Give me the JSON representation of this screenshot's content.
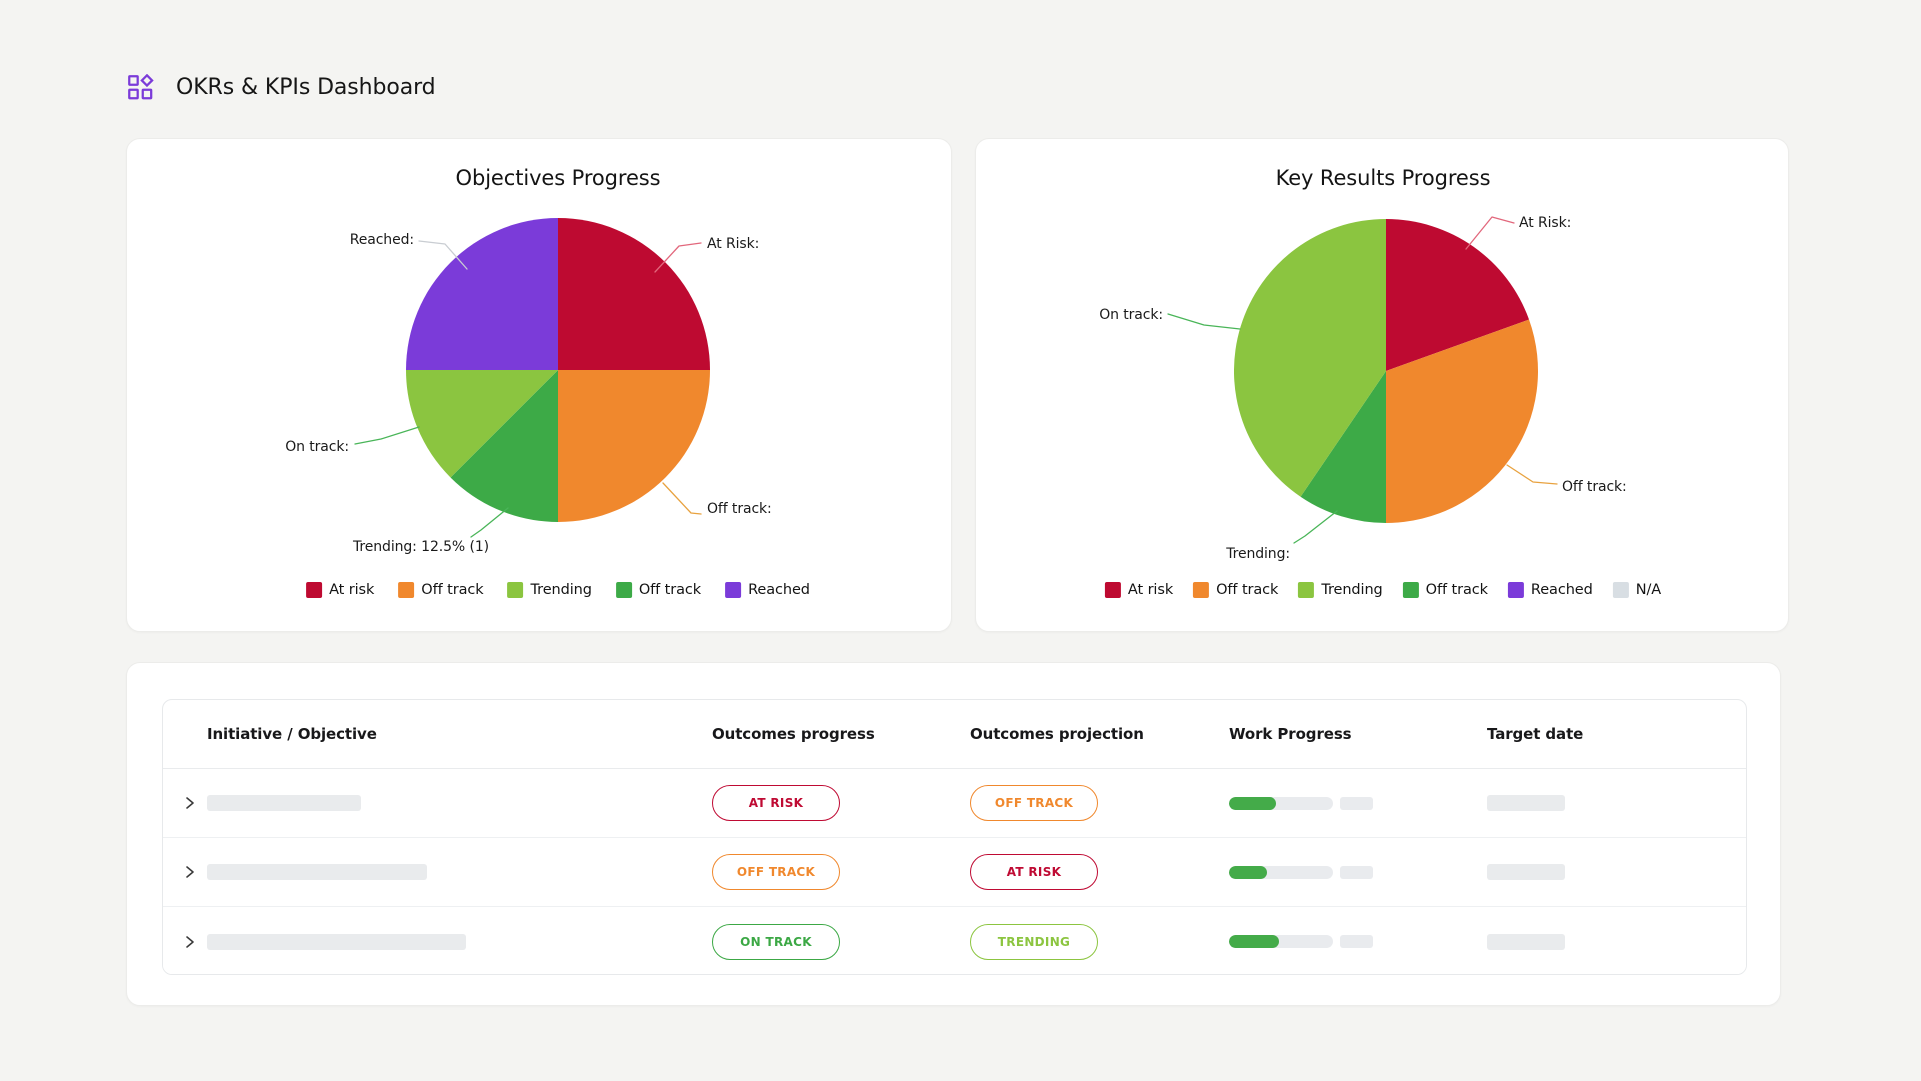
{
  "page": {
    "title": "OKRs & KPIs Dashboard"
  },
  "chart_data": [
    {
      "type": "pie",
      "title": "Objectives Progress",
      "slices": [
        {
          "label": "At risk",
          "percent": 25,
          "color": "#BE0A31"
        },
        {
          "label": "Off track",
          "percent": 25,
          "color": "#F0882D"
        },
        {
          "label": "Off track",
          "percent": 12.5,
          "color": "#3DAA47"
        },
        {
          "label": "Trending",
          "percent": 12.5,
          "color": "#8BC540"
        },
        {
          "label": "Reached",
          "percent": 25,
          "color": "#7B3BD9"
        }
      ],
      "callouts": {
        "reached": "Reached:",
        "at_risk": "At Risk:",
        "off_track": "Off track:",
        "trending": "Trending:  12.5% (1)",
        "on_track": "On track:"
      },
      "legend": [
        {
          "label": "At risk",
          "color": "#BE0A31"
        },
        {
          "label": "Off track",
          "color": "#F0882D"
        },
        {
          "label": "Trending",
          "color": "#8BC540"
        },
        {
          "label": "Off track",
          "color": "#3DAA47"
        },
        {
          "label": "Reached",
          "color": "#7B3BD9"
        }
      ]
    },
    {
      "type": "pie",
      "title": "Key Results Progress",
      "slices": [
        {
          "label": "At risk",
          "percent": 19.5,
          "color": "#BE0A31"
        },
        {
          "label": "Off track",
          "percent": 30.5,
          "color": "#F0882D"
        },
        {
          "label": "Off track",
          "percent": 9.5,
          "color": "#3DAA47"
        },
        {
          "label": "Trending",
          "percent": 40.5,
          "color": "#8BC540"
        }
      ],
      "callouts": {
        "at_risk": "At Risk:",
        "on_track": "On track:",
        "off_track": "Off track:",
        "trending": "Trending:"
      },
      "legend": [
        {
          "label": "At risk",
          "color": "#BE0A31"
        },
        {
          "label": "Off track",
          "color": "#F0882D"
        },
        {
          "label": "Trending",
          "color": "#8BC540"
        },
        {
          "label": "Off track",
          "color": "#3DAA47"
        },
        {
          "label": "Reached",
          "color": "#7B3BD9"
        },
        {
          "label": "N/A",
          "color": "#D8DEE3"
        }
      ]
    }
  ],
  "table": {
    "headers": [
      "Initiative / Objective",
      "Outcomes progress",
      "Outcomes projection",
      "Work Progress",
      "Target date"
    ],
    "rows": [
      {
        "name_bar_width": 154,
        "outcomes_progress": {
          "label": "AT RISK",
          "color": "#BF0A33"
        },
        "outcomes_projection": {
          "label": "OFF TRACK",
          "color": "#F0882D"
        },
        "work_progress_percent": 45
      },
      {
        "name_bar_width": 220,
        "outcomes_progress": {
          "label": "OFF TRACK",
          "color": "#F0882D"
        },
        "outcomes_projection": {
          "label": "AT RISK",
          "color": "#BF0A33"
        },
        "work_progress_percent": 37
      },
      {
        "name_bar_width": 259,
        "outcomes_progress": {
          "label": "ON TRACK",
          "color": "#3CA845"
        },
        "outcomes_projection": {
          "label": "TRENDING",
          "color": "#8CC540"
        },
        "work_progress_percent": 48
      }
    ]
  }
}
